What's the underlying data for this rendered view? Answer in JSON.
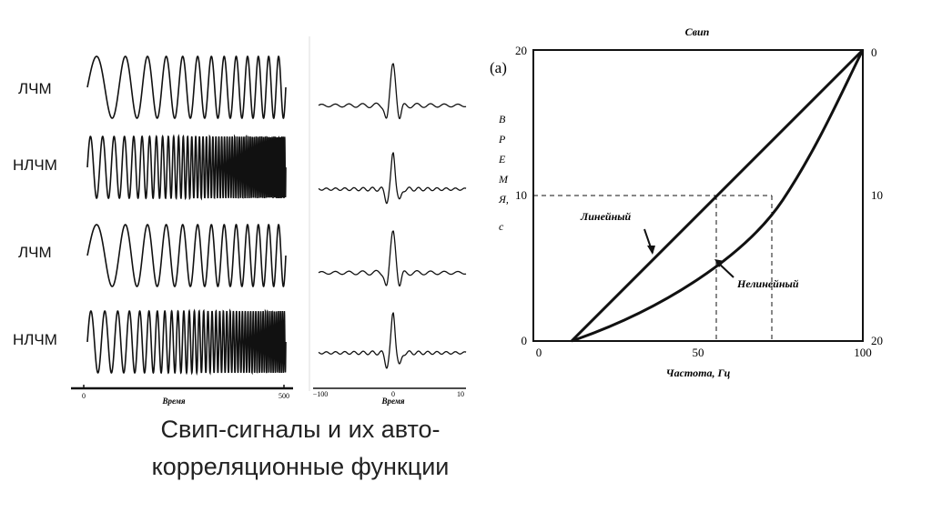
{
  "rows": [
    {
      "label": "ЛЧМ",
      "kind": "lfm"
    },
    {
      "label": "НЛЧМ",
      "kind": "nlfm"
    },
    {
      "label": "ЛЧМ",
      "kind": "lfm"
    },
    {
      "label": "НЛЧМ",
      "kind": "nlfm"
    }
  ],
  "signal_axis": {
    "label": "Время",
    "ticks": [
      "0",
      "500"
    ]
  },
  "acf_axis": {
    "label": "Время",
    "ticks": [
      "−100",
      "0",
      "10"
    ]
  },
  "sweep_plot": {
    "panel_tag": "(a)",
    "title": "Свип",
    "xlabel": "Частота, Гц",
    "ylabel_letters": [
      "В",
      "Р",
      "Е",
      "М",
      "Я,",
      "с"
    ],
    "x_ticks": [
      "0",
      "50",
      "100"
    ],
    "y_left_ticks": [
      "0",
      "10",
      "20"
    ],
    "y_right_ticks": [
      "0",
      "10",
      "20"
    ],
    "curve_linear_label": "Линейный",
    "curve_nonlinear_label": "Нелинейный"
  },
  "caption": {
    "line1": "Свип-сигналы и их авто-",
    "line2": "корреляционные функции"
  }
}
